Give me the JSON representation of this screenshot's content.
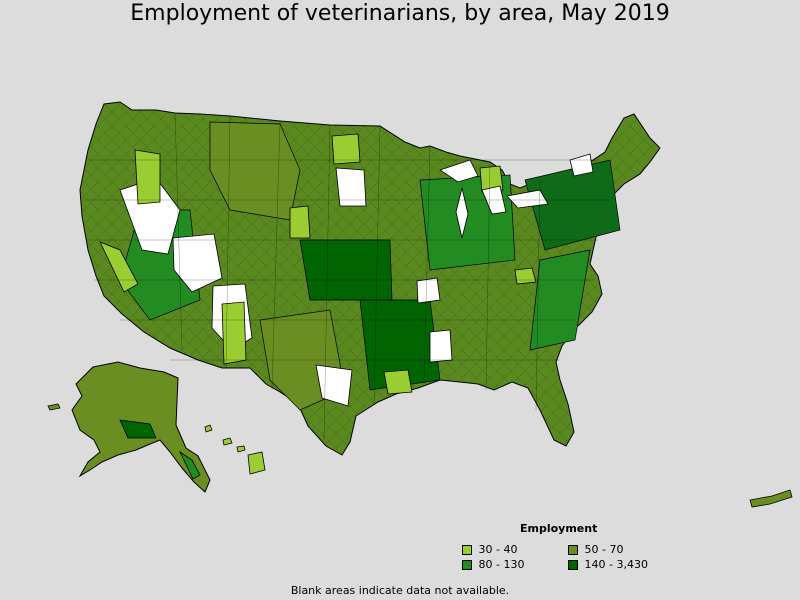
{
  "title": "Employment of veterinarians, by area, May 2019",
  "legend": {
    "title": "Employment",
    "items": [
      {
        "label": "30 - 40",
        "color": "#9acd32"
      },
      {
        "label": "50 - 70",
        "color": "#6b8e23"
      },
      {
        "label": "80 - 130",
        "color": "#228b22"
      },
      {
        "label": "140 - 3,430",
        "color": "#006400"
      }
    ]
  },
  "note": "Blank areas indicate data not available.",
  "colors": {
    "background": "#dcdcdc",
    "no_data": "#ffffff",
    "border": "#000000"
  }
}
